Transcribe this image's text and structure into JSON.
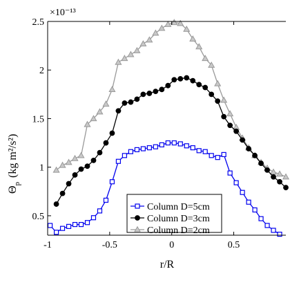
{
  "chart_data": {
    "type": "line",
    "title": "",
    "xlabel": "r/R",
    "ylabel_symbol": "Θ",
    "ylabel_subscript": "p",
    "ylabel_units": "(kg m²/s²)",
    "y_multiplier": "×10⁻¹³",
    "xlim": [
      -1,
      0.92
    ],
    "ylim": [
      0.3,
      2.5
    ],
    "xticks": [
      -1,
      -0.5,
      0,
      0.5
    ],
    "xtick_labels": [
      "-1",
      "-0.5",
      "0",
      "0.5"
    ],
    "yticks": [
      0.5,
      1,
      1.5,
      2,
      2.5
    ],
    "ytick_labels": [
      "0.5",
      "1",
      "1.5",
      "2",
      "2.5"
    ],
    "grid": false,
    "legend_position": "bottom-center",
    "series": [
      {
        "name": "Column D=5cm",
        "color": "#0000ee",
        "marker": "square",
        "x": [
          -0.98,
          -0.93,
          -0.88,
          -0.83,
          -0.78,
          -0.73,
          -0.68,
          -0.63,
          -0.58,
          -0.53,
          -0.48,
          -0.43,
          -0.38,
          -0.33,
          -0.28,
          -0.23,
          -0.18,
          -0.13,
          -0.08,
          -0.03,
          0.02,
          0.07,
          0.12,
          0.17,
          0.22,
          0.27,
          0.32,
          0.37,
          0.42,
          0.47,
          0.52,
          0.57,
          0.62,
          0.67,
          0.72,
          0.77,
          0.82,
          0.87
        ],
        "values": [
          0.4,
          0.33,
          0.37,
          0.39,
          0.41,
          0.41,
          0.43,
          0.48,
          0.55,
          0.66,
          0.85,
          1.06,
          1.12,
          1.16,
          1.18,
          1.19,
          1.2,
          1.21,
          1.23,
          1.25,
          1.25,
          1.24,
          1.22,
          1.2,
          1.17,
          1.16,
          1.12,
          1.1,
          1.13,
          0.94,
          0.84,
          0.74,
          0.64,
          0.56,
          0.47,
          0.4,
          0.35,
          0.31
        ]
      },
      {
        "name": "Column D=3cm",
        "color": "#000000",
        "marker": "circle",
        "x": [
          -0.93,
          -0.88,
          -0.83,
          -0.78,
          -0.73,
          -0.68,
          -0.63,
          -0.58,
          -0.53,
          -0.48,
          -0.43,
          -0.38,
          -0.33,
          -0.28,
          -0.23,
          -0.18,
          -0.13,
          -0.08,
          -0.03,
          0.02,
          0.07,
          0.12,
          0.17,
          0.22,
          0.27,
          0.32,
          0.37,
          0.42,
          0.47,
          0.52,
          0.57,
          0.62,
          0.67,
          0.72,
          0.77,
          0.82,
          0.87,
          0.92
        ],
        "values": [
          0.62,
          0.73,
          0.83,
          0.92,
          0.98,
          1.01,
          1.07,
          1.15,
          1.25,
          1.35,
          1.58,
          1.66,
          1.67,
          1.7,
          1.75,
          1.76,
          1.78,
          1.8,
          1.84,
          1.9,
          1.91,
          1.92,
          1.89,
          1.85,
          1.82,
          1.75,
          1.68,
          1.52,
          1.43,
          1.37,
          1.28,
          1.19,
          1.12,
          1.04,
          0.97,
          0.9,
          0.85,
          0.79
        ]
      },
      {
        "name": "Column D=2cm",
        "color": "#999999",
        "marker": "triangle",
        "x": [
          -0.93,
          -0.88,
          -0.83,
          -0.78,
          -0.73,
          -0.68,
          -0.63,
          -0.58,
          -0.53,
          -0.48,
          -0.43,
          -0.38,
          -0.33,
          -0.28,
          -0.23,
          -0.18,
          -0.13,
          -0.08,
          -0.03,
          0.02,
          0.07,
          0.12,
          0.17,
          0.22,
          0.27,
          0.32,
          0.37,
          0.42,
          0.47,
          0.52,
          0.57,
          0.62,
          0.67,
          0.72,
          0.77,
          0.82,
          0.87,
          0.92
        ],
        "values": [
          0.97,
          1.02,
          1.05,
          1.09,
          1.12,
          1.44,
          1.5,
          1.57,
          1.65,
          1.8,
          2.08,
          2.12,
          2.16,
          2.2,
          2.27,
          2.31,
          2.38,
          2.43,
          2.47,
          2.49,
          2.48,
          2.42,
          2.32,
          2.24,
          2.12,
          2.05,
          1.86,
          1.69,
          1.55,
          1.41,
          1.3,
          1.2,
          1.12,
          1.05,
          0.99,
          0.95,
          0.93,
          0.9
        ]
      }
    ]
  }
}
